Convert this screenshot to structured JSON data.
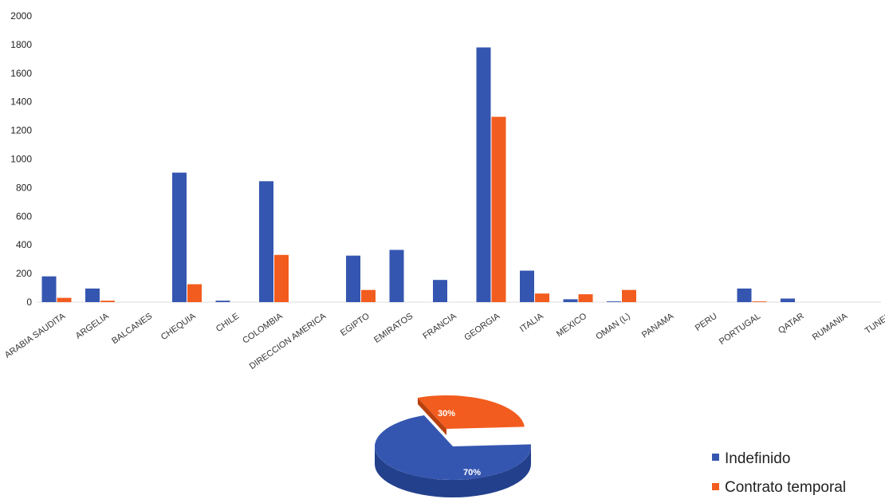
{
  "chart_data": [
    {
      "type": "bar",
      "categories": [
        "ARABIA SAUDITA",
        "ARGELIA",
        "BALCANES",
        "CHEQUIA",
        "CHILE",
        "COLOMBIA",
        "DIRECCION AMERICA",
        "EGIPTO",
        "EMIRATOS",
        "FRANCIA",
        "GEORGIA",
        "ITALIA",
        "MEXICO",
        "OMAN (L)",
        "PANAMA",
        "PERU",
        "PORTUGAL",
        "QATAR",
        "RUMANIA",
        "TUNEZ"
      ],
      "series": [
        {
          "name": "Indefinido",
          "color": "#3556b0",
          "values": [
            180,
            95,
            0,
            905,
            10,
            845,
            0,
            325,
            365,
            155,
            1780,
            220,
            20,
            5,
            0,
            0,
            95,
            25,
            0,
            0
          ]
        },
        {
          "name": "Contrato temporal",
          "color": "#f25c1e",
          "values": [
            30,
            10,
            0,
            125,
            0,
            330,
            0,
            85,
            0,
            0,
            1295,
            60,
            55,
            85,
            0,
            0,
            5,
            0,
            0,
            0
          ]
        }
      ],
      "ylim": [
        0,
        2000
      ],
      "yticks": [
        0,
        200,
        400,
        600,
        800,
        1000,
        1200,
        1400,
        1600,
        1800,
        2000
      ],
      "grid": false
    },
    {
      "type": "pie",
      "labels": [
        "Indefinido",
        "Contrato temporal"
      ],
      "values": [
        70,
        30
      ],
      "value_labels": [
        "70%",
        "30%"
      ],
      "colors": [
        "#3556b0",
        "#f25c1e"
      ],
      "legend_position": "right"
    }
  ],
  "legend": {
    "items": [
      {
        "label": "Indefinido",
        "color": "#3556b0"
      },
      {
        "label": "Contrato temporal",
        "color": "#f25c1e"
      }
    ]
  }
}
